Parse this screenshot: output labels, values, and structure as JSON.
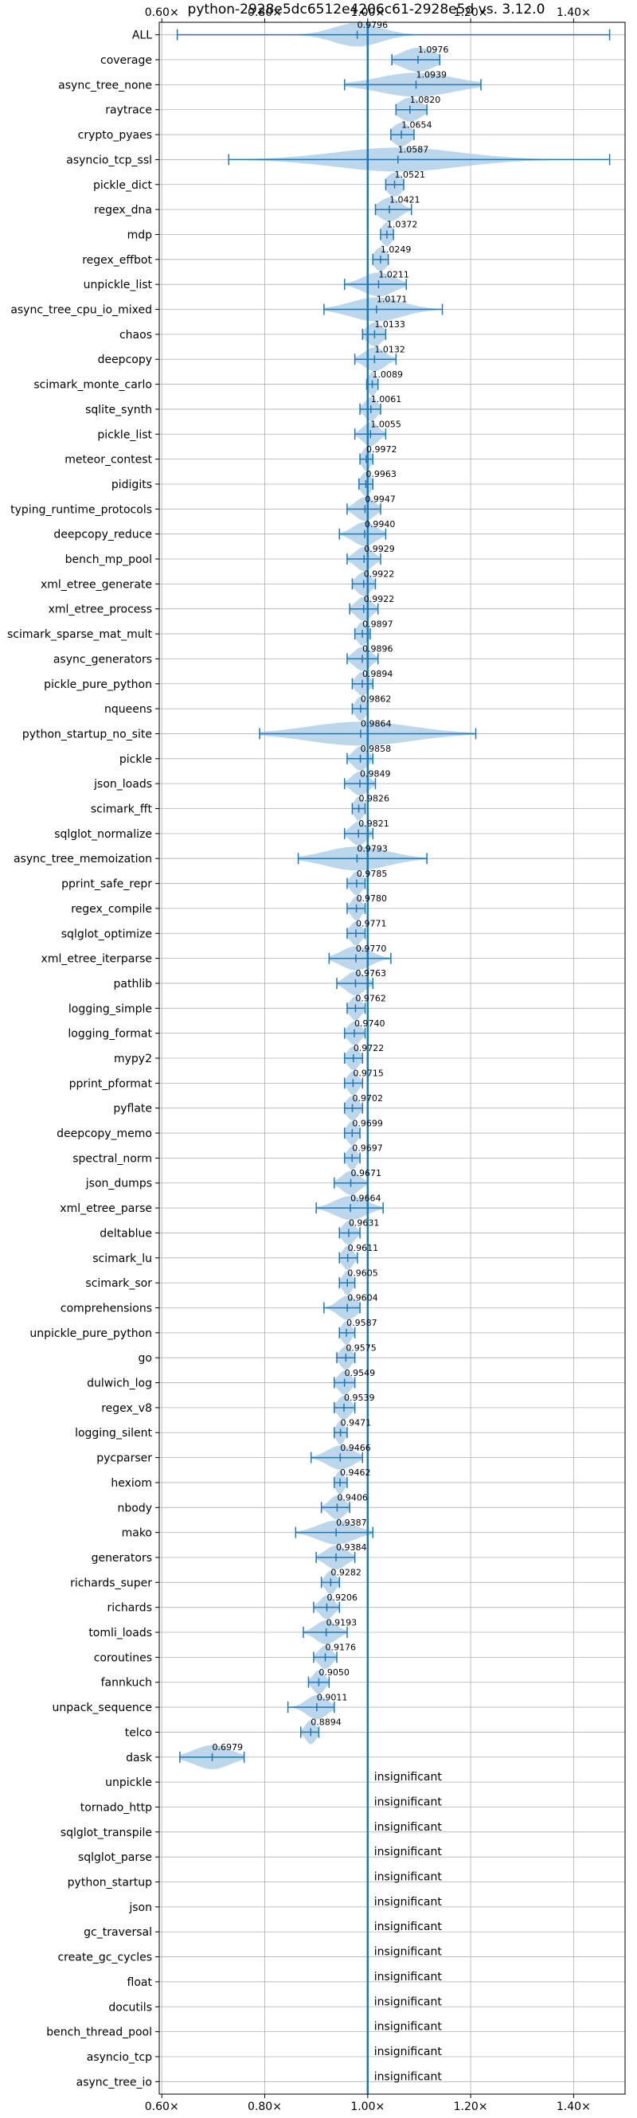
{
  "chart_data": {
    "type": "violin",
    "title": "python-2928e5dc6512e4206c61-2928e5d vs. 3.12.0",
    "x_ticks": [
      "0.60×",
      "0.80×",
      "1.00×",
      "1.20×",
      "1.40×"
    ],
    "x_tick_values": [
      0.6,
      0.8,
      1.0,
      1.2,
      1.4
    ],
    "xlim": [
      0.595,
      1.5
    ],
    "reference_line": 1.0,
    "grid": true,
    "colors": {
      "body": "#a6c8e4",
      "line": "#1f77b4"
    },
    "benchmarks": [
      {
        "name": "ALL",
        "value": 0.9796,
        "label": "0.9796",
        "min": 0.63,
        "max": 1.47,
        "width": 0.045
      },
      {
        "name": "coverage",
        "value": 1.0976,
        "label": "1.0976",
        "min": 1.047,
        "max": 1.14,
        "width": 0.032
      },
      {
        "name": "async_tree_none",
        "value": 1.0939,
        "label": "1.0939",
        "min": 0.955,
        "max": 1.22,
        "width": 0.072
      },
      {
        "name": "raytrace",
        "value": 1.082,
        "label": "1.0820",
        "min": 1.055,
        "max": 1.115,
        "width": 0.022
      },
      {
        "name": "crypto_pyaes",
        "value": 1.0654,
        "label": "1.0654",
        "min": 1.045,
        "max": 1.09,
        "width": 0.017
      },
      {
        "name": "asyncio_tcp_ssl",
        "value": 1.0587,
        "label": "1.0587",
        "min": 0.73,
        "max": 1.47,
        "width": 0.12
      },
      {
        "name": "pickle_dict",
        "value": 1.0521,
        "label": "1.0521",
        "min": 1.035,
        "max": 1.07,
        "width": 0.015
      },
      {
        "name": "regex_dna",
        "value": 1.0421,
        "label": "1.0421",
        "min": 1.015,
        "max": 1.085,
        "width": 0.02
      },
      {
        "name": "mdp",
        "value": 1.0372,
        "label": "1.0372",
        "min": 1.025,
        "max": 1.05,
        "width": 0.01
      },
      {
        "name": "regex_effbot",
        "value": 1.0249,
        "label": "1.0249",
        "min": 1.01,
        "max": 1.04,
        "width": 0.012
      },
      {
        "name": "unpickle_list",
        "value": 1.0211,
        "label": "1.0211",
        "min": 0.955,
        "max": 1.075,
        "width": 0.03
      },
      {
        "name": "async_tree_cpu_io_mixed",
        "value": 1.0171,
        "label": "1.0171",
        "min": 0.915,
        "max": 1.145,
        "width": 0.05
      },
      {
        "name": "chaos",
        "value": 1.0133,
        "label": "1.0133",
        "min": 0.99,
        "max": 1.035,
        "width": 0.015
      },
      {
        "name": "deepcopy",
        "value": 1.0132,
        "label": "1.0132",
        "min": 0.975,
        "max": 1.055,
        "width": 0.02
      },
      {
        "name": "scimark_monte_carlo",
        "value": 1.0089,
        "label": "1.0089",
        "min": 0.998,
        "max": 1.02,
        "width": 0.008
      },
      {
        "name": "sqlite_synth",
        "value": 1.0061,
        "label": "1.0061",
        "min": 0.985,
        "max": 1.025,
        "width": 0.012
      },
      {
        "name": "pickle_list",
        "value": 1.0055,
        "label": "1.0055",
        "min": 0.975,
        "max": 1.035,
        "width": 0.015
      },
      {
        "name": "meteor_contest",
        "value": 0.9972,
        "label": "0.9972",
        "min": 0.985,
        "max": 1.01,
        "width": 0.008
      },
      {
        "name": "pidigits",
        "value": 0.9963,
        "label": "0.9963",
        "min": 0.983,
        "max": 1.01,
        "width": 0.01
      },
      {
        "name": "typing_runtime_protocols",
        "value": 0.9947,
        "label": "0.9947",
        "min": 0.96,
        "max": 1.025,
        "width": 0.018
      },
      {
        "name": "deepcopy_reduce",
        "value": 0.994,
        "label": "0.9940",
        "min": 0.945,
        "max": 1.035,
        "width": 0.022
      },
      {
        "name": "bench_mp_pool",
        "value": 0.9929,
        "label": "0.9929",
        "min": 0.96,
        "max": 1.025,
        "width": 0.017
      },
      {
        "name": "xml_etree_generate",
        "value": 0.9922,
        "label": "0.9922",
        "min": 0.97,
        "max": 1.015,
        "width": 0.014
      },
      {
        "name": "xml_etree_process",
        "value": 0.9922,
        "label": "0.9922",
        "min": 0.965,
        "max": 1.02,
        "width": 0.015
      },
      {
        "name": "scimark_sparse_mat_mult",
        "value": 0.9897,
        "label": "0.9897",
        "min": 0.975,
        "max": 1.005,
        "width": 0.01
      },
      {
        "name": "async_generators",
        "value": 0.9896,
        "label": "0.9896",
        "min": 0.96,
        "max": 1.02,
        "width": 0.016
      },
      {
        "name": "pickle_pure_python",
        "value": 0.9894,
        "label": "0.9894",
        "min": 0.97,
        "max": 1.01,
        "width": 0.012
      },
      {
        "name": "nqueens",
        "value": 0.9862,
        "label": "0.9862",
        "min": 0.97,
        "max": 1.0,
        "width": 0.01
      },
      {
        "name": "python_startup_no_site",
        "value": 0.9864,
        "label": "0.9864",
        "min": 0.79,
        "max": 1.21,
        "width": 0.1
      },
      {
        "name": "pickle",
        "value": 0.9858,
        "label": "0.9858",
        "min": 0.96,
        "max": 1.01,
        "width": 0.014
      },
      {
        "name": "json_loads",
        "value": 0.9849,
        "label": "0.9849",
        "min": 0.955,
        "max": 1.015,
        "width": 0.016
      },
      {
        "name": "scimark_fft",
        "value": 0.9826,
        "label": "0.9826",
        "min": 0.97,
        "max": 0.995,
        "width": 0.009
      },
      {
        "name": "sqlglot_normalize",
        "value": 0.9821,
        "label": "0.9821",
        "min": 0.955,
        "max": 1.01,
        "width": 0.015
      },
      {
        "name": "async_tree_memoization",
        "value": 0.9793,
        "label": "0.9793",
        "min": 0.865,
        "max": 1.115,
        "width": 0.06
      },
      {
        "name": "pprint_safe_repr",
        "value": 0.9785,
        "label": "0.9785",
        "min": 0.96,
        "max": 0.995,
        "width": 0.011
      },
      {
        "name": "regex_compile",
        "value": 0.978,
        "label": "0.9780",
        "min": 0.96,
        "max": 0.995,
        "width": 0.01
      },
      {
        "name": "sqlglot_optimize",
        "value": 0.9771,
        "label": "0.9771",
        "min": 0.96,
        "max": 0.995,
        "width": 0.011
      },
      {
        "name": "xml_etree_iterparse",
        "value": 0.977,
        "label": "0.9770",
        "min": 0.925,
        "max": 1.045,
        "width": 0.028
      },
      {
        "name": "pathlib",
        "value": 0.9763,
        "label": "0.9763",
        "min": 0.94,
        "max": 1.01,
        "width": 0.018
      },
      {
        "name": "logging_simple",
        "value": 0.9762,
        "label": "0.9762",
        "min": 0.96,
        "max": 0.995,
        "width": 0.011
      },
      {
        "name": "logging_format",
        "value": 0.974,
        "label": "0.9740",
        "min": 0.955,
        "max": 0.995,
        "width": 0.012
      },
      {
        "name": "mypy2",
        "value": 0.9722,
        "label": "0.9722",
        "min": 0.955,
        "max": 0.99,
        "width": 0.011
      },
      {
        "name": "pprint_pformat",
        "value": 0.9715,
        "label": "0.9715",
        "min": 0.955,
        "max": 0.99,
        "width": 0.01
      },
      {
        "name": "pyflate",
        "value": 0.9702,
        "label": "0.9702",
        "min": 0.955,
        "max": 0.99,
        "width": 0.012
      },
      {
        "name": "deepcopy_memo",
        "value": 0.9699,
        "label": "0.9699",
        "min": 0.955,
        "max": 0.985,
        "width": 0.01
      },
      {
        "name": "spectral_norm",
        "value": 0.9697,
        "label": "0.9697",
        "min": 0.955,
        "max": 0.985,
        "width": 0.009
      },
      {
        "name": "json_dumps",
        "value": 0.9671,
        "label": "0.9671",
        "min": 0.935,
        "max": 1.0,
        "width": 0.017
      },
      {
        "name": "xml_etree_parse",
        "value": 0.9664,
        "label": "0.9664",
        "min": 0.9,
        "max": 1.03,
        "width": 0.03
      },
      {
        "name": "deltablue",
        "value": 0.9631,
        "label": "0.9631",
        "min": 0.945,
        "max": 0.985,
        "width": 0.012
      },
      {
        "name": "scimark_lu",
        "value": 0.9611,
        "label": "0.9611",
        "min": 0.945,
        "max": 0.98,
        "width": 0.01
      },
      {
        "name": "scimark_sor",
        "value": 0.9605,
        "label": "0.9605",
        "min": 0.945,
        "max": 0.975,
        "width": 0.009
      },
      {
        "name": "comprehensions",
        "value": 0.9604,
        "label": "0.9604",
        "min": 0.915,
        "max": 0.985,
        "width": 0.018
      },
      {
        "name": "unpickle_pure_python",
        "value": 0.9587,
        "label": "0.9587",
        "min": 0.945,
        "max": 0.975,
        "width": 0.009
      },
      {
        "name": "go",
        "value": 0.9575,
        "label": "0.9575",
        "min": 0.94,
        "max": 0.975,
        "width": 0.011
      },
      {
        "name": "dulwich_log",
        "value": 0.9549,
        "label": "0.9549",
        "min": 0.935,
        "max": 0.975,
        "width": 0.012
      },
      {
        "name": "regex_v8",
        "value": 0.9539,
        "label": "0.9539",
        "min": 0.935,
        "max": 0.975,
        "width": 0.012
      },
      {
        "name": "logging_silent",
        "value": 0.9471,
        "label": "0.9471",
        "min": 0.935,
        "max": 0.96,
        "width": 0.008
      },
      {
        "name": "pycparser",
        "value": 0.9466,
        "label": "0.9466",
        "min": 0.89,
        "max": 0.99,
        "width": 0.025
      },
      {
        "name": "hexiom",
        "value": 0.9462,
        "label": "0.9462",
        "min": 0.935,
        "max": 0.96,
        "width": 0.008
      },
      {
        "name": "nbody",
        "value": 0.9406,
        "label": "0.9406",
        "min": 0.91,
        "max": 0.965,
        "width": 0.015
      },
      {
        "name": "mako",
        "value": 0.9387,
        "label": "0.9387",
        "min": 0.86,
        "max": 1.01,
        "width": 0.035
      },
      {
        "name": "generators",
        "value": 0.9384,
        "label": "0.9384",
        "min": 0.9,
        "max": 0.975,
        "width": 0.02
      },
      {
        "name": "richards_super",
        "value": 0.9282,
        "label": "0.9282",
        "min": 0.91,
        "max": 0.945,
        "width": 0.01
      },
      {
        "name": "richards",
        "value": 0.9206,
        "label": "0.9206",
        "min": 0.895,
        "max": 0.945,
        "width": 0.013
      },
      {
        "name": "tomli_loads",
        "value": 0.9193,
        "label": "0.9193",
        "min": 0.875,
        "max": 0.96,
        "width": 0.02
      },
      {
        "name": "coroutines",
        "value": 0.9176,
        "label": "0.9176",
        "min": 0.895,
        "max": 0.94,
        "width": 0.012
      },
      {
        "name": "fannkuch",
        "value": 0.905,
        "label": "0.9050",
        "min": 0.885,
        "max": 0.925,
        "width": 0.011
      },
      {
        "name": "unpack_sequence",
        "value": 0.9011,
        "label": "0.9011",
        "min": 0.845,
        "max": 0.935,
        "width": 0.02
      },
      {
        "name": "telco",
        "value": 0.8894,
        "label": "0.8894",
        "min": 0.87,
        "max": 0.905,
        "width": 0.01
      },
      {
        "name": "dask",
        "value": 0.6979,
        "label": "0.6979",
        "min": 0.635,
        "max": 0.76,
        "width": 0.035
      }
    ],
    "insignificant_label": "insignificant",
    "insignificant": [
      "unpickle",
      "tornado_http",
      "sqlglot_transpile",
      "sqlglot_parse",
      "python_startup",
      "json",
      "gc_traversal",
      "create_gc_cycles",
      "float",
      "docutils",
      "bench_thread_pool",
      "asyncio_tcp",
      "async_tree_io"
    ]
  }
}
